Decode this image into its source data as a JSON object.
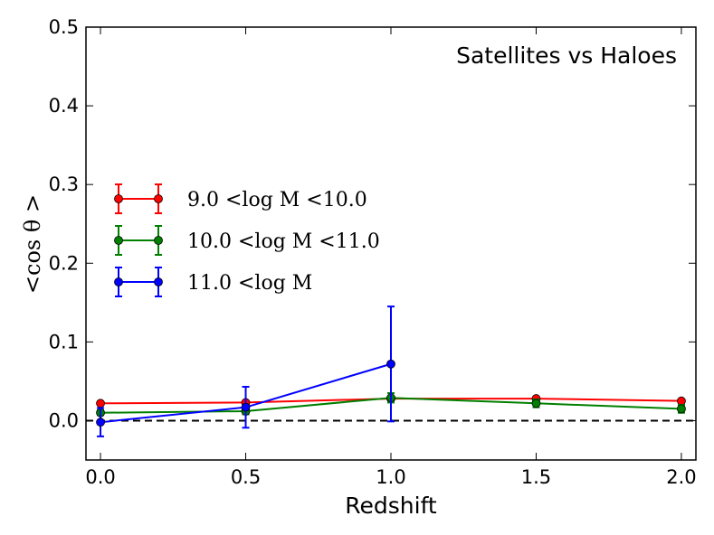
{
  "chart_data": {
    "type": "line",
    "title": "Satellites vs Haloes",
    "xlabel": "Redshift",
    "ylabel": "<cos θ >",
    "xlim": [
      -0.05,
      2.05
    ],
    "ylim": [
      -0.05,
      0.5
    ],
    "xticks": [
      "0.0",
      "0.5",
      "1.0",
      "1.5",
      "2.0"
    ],
    "yticks": [
      "0.0",
      "0.1",
      "0.2",
      "0.3",
      "0.4",
      "0.5"
    ],
    "reference_line": {
      "y": 0.0,
      "style": "dashed"
    },
    "legend_position": "middle-left",
    "series": [
      {
        "name": "9.0 <log M <10.0",
        "color": "#ff0000",
        "x": [
          0.0,
          0.5,
          1.0,
          1.5,
          2.0
        ],
        "y": [
          0.022,
          0.023,
          0.028,
          0.028,
          0.025
        ],
        "yerr": [
          0.002,
          0.002,
          0.002,
          0.002,
          0.002
        ]
      },
      {
        "name": "10.0 <log M <11.0",
        "color": "#008000",
        "x": [
          0.0,
          0.5,
          1.0,
          1.5,
          2.0
        ],
        "y": [
          0.01,
          0.012,
          0.029,
          0.022,
          0.015
        ],
        "yerr": [
          0.003,
          0.004,
          0.006,
          0.005,
          0.005
        ]
      },
      {
        "name": "11.0 <log M",
        "color": "#0000ff",
        "x": [
          0.0,
          0.5,
          1.0
        ],
        "y": [
          -0.002,
          0.017,
          0.072
        ],
        "yerr": [
          0.018,
          0.026,
          0.073
        ]
      }
    ]
  }
}
